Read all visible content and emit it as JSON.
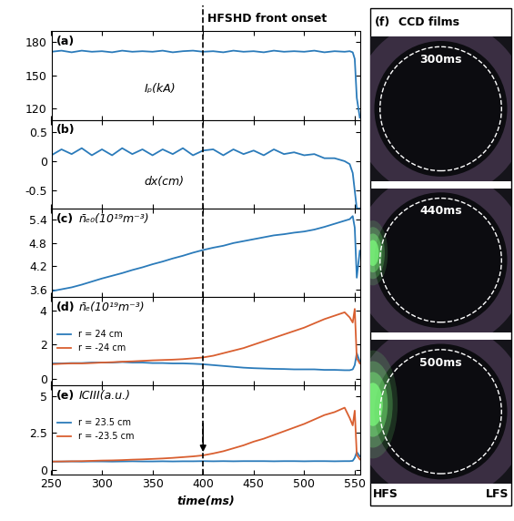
{
  "chart_data": [
    {
      "type": "line",
      "label": "(a)",
      "ylabel": "Iₚ(kA)",
      "tick_labels": "y",
      "x": [
        250,
        260,
        270,
        280,
        290,
        300,
        310,
        320,
        330,
        340,
        350,
        360,
        370,
        380,
        390,
        400,
        410,
        420,
        430,
        440,
        450,
        460,
        470,
        480,
        490,
        500,
        510,
        520,
        530,
        540,
        545,
        548,
        550,
        552,
        555
      ],
      "values": [
        171.5,
        172.5,
        171,
        172.5,
        171.5,
        172,
        171,
        172.5,
        171.5,
        172,
        171.5,
        172.5,
        171,
        172,
        172.5,
        171.5,
        172,
        171,
        172.5,
        171.5,
        172,
        171,
        172.5,
        171.5,
        172,
        171.5,
        172.5,
        171,
        172,
        171.5,
        172,
        171,
        165,
        130,
        112
      ],
      "color": "#2b7bba",
      "xlim": [
        250,
        555
      ],
      "xticks": [
        250,
        300,
        350,
        400,
        450,
        500,
        550
      ],
      "ylim": [
        110,
        190
      ],
      "yticks": [
        120,
        150,
        180
      ]
    },
    {
      "type": "line",
      "label": "(b)",
      "ylabel": "dx(cm)",
      "tick_labels": "y",
      "x": [
        250,
        260,
        270,
        280,
        290,
        300,
        310,
        320,
        330,
        340,
        350,
        360,
        370,
        380,
        390,
        400,
        410,
        420,
        430,
        440,
        450,
        460,
        470,
        480,
        490,
        500,
        510,
        520,
        530,
        540,
        545,
        548,
        550,
        552,
        555
      ],
      "values": [
        0.1,
        0.2,
        0.12,
        0.22,
        0.1,
        0.2,
        0.1,
        0.22,
        0.12,
        0.2,
        0.1,
        0.2,
        0.12,
        0.22,
        0.1,
        0.18,
        0.2,
        0.1,
        0.2,
        0.12,
        0.18,
        0.1,
        0.2,
        0.12,
        0.15,
        0.1,
        0.12,
        0.05,
        0.05,
        0.0,
        -0.05,
        -0.2,
        -0.5,
        -0.8,
        -0.8
      ],
      "color": "#2b7bba",
      "xlim": [
        250,
        555
      ],
      "xticks": [
        250,
        300,
        350,
        400,
        450,
        500,
        550
      ],
      "ylim": [
        -0.8,
        0.7
      ],
      "yticks": [
        -0.5,
        0,
        0.5
      ]
    },
    {
      "type": "line",
      "label": "(c)",
      "ylabel": "n̄ₑ₀(10¹⁹m⁻³)",
      "tick_labels": "y",
      "x": [
        250,
        260,
        270,
        280,
        290,
        300,
        310,
        320,
        330,
        340,
        350,
        360,
        370,
        380,
        390,
        400,
        410,
        420,
        430,
        440,
        450,
        460,
        470,
        480,
        490,
        500,
        510,
        520,
        530,
        540,
        545,
        548,
        550,
        552,
        555
      ],
      "values": [
        3.55,
        3.6,
        3.65,
        3.72,
        3.8,
        3.88,
        3.95,
        4.02,
        4.1,
        4.17,
        4.25,
        4.32,
        4.4,
        4.47,
        4.55,
        4.62,
        4.68,
        4.73,
        4.8,
        4.85,
        4.9,
        4.95,
        5.0,
        5.03,
        5.07,
        5.1,
        5.15,
        5.22,
        5.3,
        5.38,
        5.42,
        5.5,
        5.2,
        3.9,
        4.6
      ],
      "color": "#2b7bba",
      "xlim": [
        250,
        555
      ],
      "xticks": [
        250,
        300,
        350,
        400,
        450,
        500,
        550
      ],
      "ylim": [
        3.4,
        5.7
      ],
      "yticks": [
        3.6,
        4.2,
        4.8,
        5.4
      ]
    },
    {
      "type": "line",
      "label": "(d)",
      "ylabel": "n̄ₑ(10¹⁹m⁻³)",
      "tick_labels": "y",
      "legend": "center left",
      "x": [
        250,
        260,
        270,
        280,
        290,
        300,
        310,
        320,
        330,
        340,
        350,
        360,
        370,
        380,
        390,
        400,
        410,
        420,
        430,
        440,
        450,
        460,
        470,
        480,
        490,
        500,
        510,
        520,
        530,
        540,
        545,
        548,
        550,
        552,
        555
      ],
      "series": [
        {
          "name": "r = 24 cm",
          "color": "#2b7bba",
          "values": [
            0.9,
            0.9,
            0.92,
            0.92,
            0.95,
            0.95,
            0.95,
            0.98,
            0.95,
            0.95,
            0.92,
            0.92,
            0.9,
            0.9,
            0.88,
            0.85,
            0.8,
            0.75,
            0.7,
            0.65,
            0.62,
            0.6,
            0.58,
            0.57,
            0.55,
            0.55,
            0.55,
            0.52,
            0.52,
            0.5,
            0.5,
            0.55,
            0.8,
            1.5,
            1.0
          ]
        },
        {
          "name": "r = -24 cm",
          "color": "#d95f30",
          "values": [
            0.85,
            0.88,
            0.9,
            0.9,
            0.92,
            0.95,
            0.97,
            1.0,
            1.02,
            1.05,
            1.08,
            1.1,
            1.12,
            1.15,
            1.2,
            1.25,
            1.35,
            1.5,
            1.65,
            1.8,
            2.0,
            2.2,
            2.4,
            2.6,
            2.8,
            3.0,
            3.25,
            3.5,
            3.7,
            3.9,
            3.6,
            3.3,
            4.1,
            1.2,
            0.9
          ]
        }
      ],
      "xlim": [
        250,
        555
      ],
      "xticks": [
        250,
        300,
        350,
        400,
        450,
        500,
        550
      ],
      "ylim": [
        -0.4,
        4.8
      ],
      "yticks": [
        0,
        2,
        4
      ]
    },
    {
      "type": "line",
      "label": "(e)",
      "ylabel": "ICIII(a.u.)",
      "xlabel": "time(ms)",
      "legend": "center left",
      "x": [
        250,
        260,
        270,
        280,
        290,
        300,
        310,
        320,
        330,
        340,
        350,
        360,
        370,
        380,
        390,
        400,
        410,
        420,
        430,
        440,
        450,
        460,
        470,
        480,
        490,
        500,
        510,
        520,
        530,
        540,
        545,
        548,
        550,
        552,
        555
      ],
      "series": [
        {
          "name": "r = 23.5 cm",
          "color": "#2b7bba",
          "values": [
            0.55,
            0.55,
            0.56,
            0.55,
            0.56,
            0.56,
            0.55,
            0.56,
            0.57,
            0.56,
            0.56,
            0.57,
            0.56,
            0.57,
            0.57,
            0.58,
            0.57,
            0.58,
            0.57,
            0.58,
            0.58,
            0.58,
            0.57,
            0.58,
            0.58,
            0.57,
            0.58,
            0.58,
            0.57,
            0.58,
            0.58,
            0.6,
            0.8,
            1.2,
            0.9
          ]
        },
        {
          "name": "r = -23.5 cm",
          "color": "#d95f30",
          "values": [
            0.55,
            0.56,
            0.57,
            0.58,
            0.6,
            0.62,
            0.63,
            0.65,
            0.68,
            0.7,
            0.73,
            0.76,
            0.8,
            0.85,
            0.9,
            0.97,
            1.1,
            1.25,
            1.45,
            1.65,
            1.9,
            2.1,
            2.35,
            2.6,
            2.85,
            3.1,
            3.4,
            3.7,
            3.9,
            4.2,
            3.5,
            3.0,
            4.0,
            1.0,
            0.7
          ]
        }
      ],
      "xlim": [
        250,
        555
      ],
      "xticks": [
        250,
        300,
        350,
        400,
        450,
        500,
        550
      ],
      "ylim": [
        -0.3,
        5.7
      ],
      "yticks": [
        0,
        2.5,
        5
      ]
    }
  ],
  "onset": {
    "x": 400,
    "label": "HFSHD front onset"
  },
  "films": {
    "label": "(f)",
    "title": "CCD films",
    "frames": [
      "300ms",
      "440ms",
      "500ms"
    ],
    "left": "HFS",
    "right": "LFS"
  }
}
